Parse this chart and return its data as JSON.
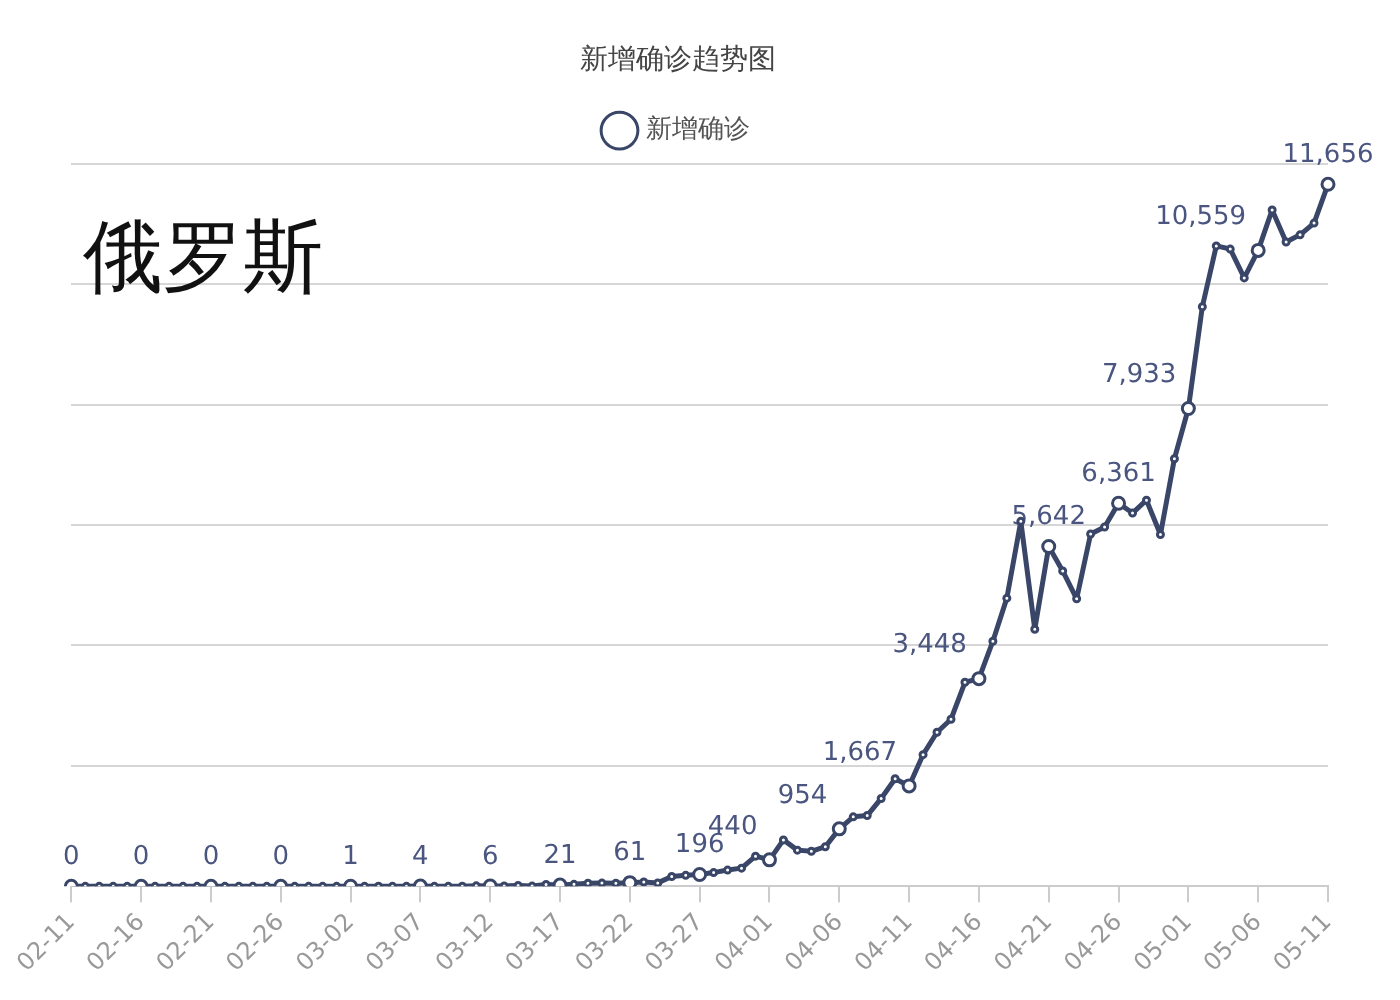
{
  "chart_data": {
    "type": "line",
    "title": "新增确诊趋势图",
    "annotations": [
      "俄罗斯"
    ],
    "categories": [
      "02-11",
      null,
      null,
      null,
      null,
      "02-16",
      null,
      null,
      null,
      null,
      "02-21",
      null,
      null,
      null,
      null,
      "02-26",
      null,
      null,
      null,
      null,
      "03-02",
      null,
      null,
      null,
      null,
      "03-07",
      null,
      null,
      null,
      null,
      "03-12",
      null,
      null,
      null,
      null,
      "03-17",
      null,
      null,
      null,
      null,
      "03-22",
      null,
      null,
      null,
      null,
      "03-27",
      null,
      null,
      null,
      null,
      "04-01",
      null,
      null,
      null,
      null,
      "04-06",
      null,
      null,
      null,
      null,
      "04-11",
      null,
      null,
      null,
      null,
      "04-16",
      null,
      null,
      null,
      null,
      "04-21",
      null,
      null,
      null,
      null,
      "04-26",
      null,
      null,
      null,
      null,
      "05-01",
      null,
      null,
      null,
      null,
      "05-06",
      null,
      null,
      null,
      null,
      "05-11"
    ],
    "series": [
      {
        "name": "新增确诊",
        "color": "#3a4668",
        "values": [
          0,
          0,
          0,
          0,
          0,
          0,
          0,
          0,
          0,
          0,
          0,
          0,
          0,
          0,
          0,
          0,
          0,
          0,
          0,
          0,
          1,
          0,
          1,
          0,
          0,
          4,
          0,
          0,
          3,
          8,
          6,
          6,
          14,
          4,
          30,
          21,
          33,
          52,
          54,
          53,
          61,
          71,
          57,
          163,
          182,
          196,
          228,
          270,
          302,
          501,
          440,
          771,
          601,
          582,
          658,
          954,
          1154,
          1175,
          1459,
          1786,
          1667,
          2186,
          2558,
          2774,
          3388,
          3448,
          4070,
          4785,
          6060,
          4268,
          5642,
          5236,
          4774,
          5849,
          5966,
          6361,
          6198,
          6411,
          5841,
          7099,
          7933,
          9623,
          10633,
          10581,
          10102,
          10559,
          11231,
          10699,
          10817,
          11012,
          11656
        ],
        "value_labels": [
          "0",
          null,
          null,
          null,
          null,
          "0",
          null,
          null,
          null,
          null,
          "0",
          null,
          null,
          null,
          null,
          "0",
          null,
          null,
          null,
          null,
          "1",
          null,
          null,
          null,
          null,
          "4",
          null,
          null,
          null,
          null,
          "6",
          null,
          null,
          null,
          null,
          "21",
          null,
          null,
          null,
          null,
          "61",
          null,
          null,
          null,
          null,
          "196",
          null,
          null,
          null,
          null,
          "440",
          null,
          null,
          null,
          null,
          "954",
          null,
          null,
          null,
          null,
          "1,667",
          null,
          null,
          null,
          null,
          "3,448",
          null,
          null,
          null,
          null,
          "5,642",
          null,
          null,
          null,
          null,
          "6,361",
          null,
          null,
          null,
          null,
          "7,933",
          null,
          null,
          null,
          null,
          "10,559",
          null,
          null,
          null,
          null,
          "11,656"
        ]
      }
    ],
    "ylim": [
      0,
      12000
    ],
    "yticks": [
      {
        "value": 0,
        "label": null
      },
      {
        "value": 2000,
        "label": null
      },
      {
        "value": 4000,
        "label": null
      },
      {
        "value": 6000,
        "label": null
      },
      {
        "value": 8000,
        "label": null
      },
      {
        "value": 10000,
        "label": null
      },
      {
        "value": 12000,
        "label": null
      }
    ],
    "tick_labels": "x",
    "grid": "y",
    "legend": "top",
    "marker": "circle",
    "line_style": "solid"
  }
}
